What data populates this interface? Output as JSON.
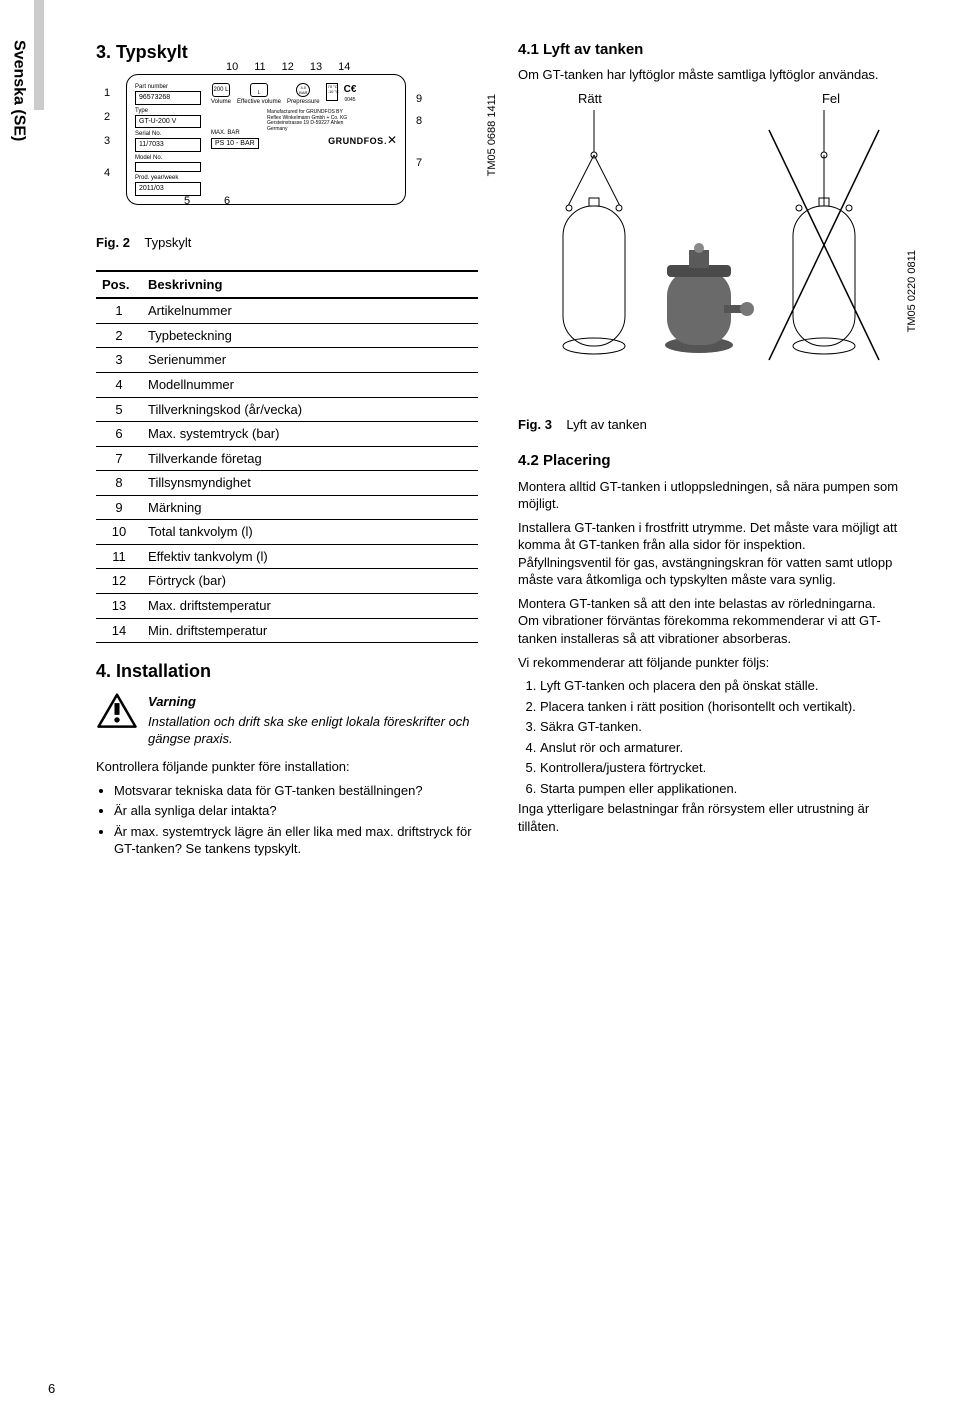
{
  "sidebar": {
    "language": "Svenska (SE)"
  },
  "left": {
    "sec3_title": "3. Typskylt",
    "nameplate": {
      "top_labels": [
        "10",
        "11",
        "12",
        "13",
        "14"
      ],
      "left_labels": [
        "1",
        "2",
        "3",
        "4"
      ],
      "right_labels": [
        "9",
        "8",
        "7"
      ],
      "bottom_labels": [
        "5",
        "6"
      ],
      "fields": {
        "part_number_label": "Part number",
        "part_number": "96573268",
        "type_label": "Type",
        "type": "GT-U-200 V",
        "serial_label": "Serial No.",
        "serial": "11/7033",
        "model_label": "Model No.",
        "prod_label": "Prod. year/week",
        "prod": "2011/03",
        "max_bar_label": "MAX.    BAR",
        "max_bar": "PS 10 - BAR",
        "volume": "200 L",
        "volume_cap": "Volume",
        "eff_cap": "Effective volume",
        "pre_cap": "Prepressure",
        "pre_val": "4.0 BAR",
        "temp": "70 °C\n-10 °C",
        "ce_num": "0045"
      },
      "mfr_lines": "Manufactured for GRUNDFOS BY\nReflex Winkelmann Gmbh + Co. KG\nGersteinstrasse 19 D-59227 Ahlen\nGermany",
      "logo": "GRUNDFOS",
      "tm_code": "TM05 0688 1411"
    },
    "fig2": {
      "label": "Fig. 2",
      "text": "Typskylt"
    },
    "table": {
      "headers": [
        "Pos.",
        "Beskrivning"
      ],
      "rows": [
        [
          "1",
          "Artikelnummer"
        ],
        [
          "2",
          "Typbeteckning"
        ],
        [
          "3",
          "Serienummer"
        ],
        [
          "4",
          "Modellnummer"
        ],
        [
          "5",
          "Tillverkningskod (år/vecka)"
        ],
        [
          "6",
          "Max. systemtryck (bar)"
        ],
        [
          "7",
          "Tillverkande företag"
        ],
        [
          "8",
          "Tillsynsmyndighet"
        ],
        [
          "9",
          "Märkning"
        ],
        [
          "10",
          "Total tankvolym (l)"
        ],
        [
          "11",
          "Effektiv tankvolym (l)"
        ],
        [
          "12",
          "Förtryck (bar)"
        ],
        [
          "13",
          "Max. driftstemperatur"
        ],
        [
          "14",
          "Min. driftstemperatur"
        ]
      ]
    },
    "sec4_title": "4. Installation",
    "warning": {
      "heading": "Varning",
      "body": "Installation och drift ska ske enligt lokala föreskrifter och gängse praxis."
    },
    "check_intro": "Kontrollera följande punkter före installation:",
    "check_bullets": [
      "Motsvarar tekniska data för GT-tanken beställningen?",
      "Är alla synliga delar intakta?",
      "Är max. systemtryck lägre än eller lika med max. driftstryck för GT-tanken? Se tankens typskylt."
    ]
  },
  "right": {
    "sec41_title": "4.1 Lyft av tanken",
    "sec41_intro": "Om GT-tanken har lyftöglor måste samtliga lyftöglor användas.",
    "ratt": "Rätt",
    "fel": "Fel",
    "fig3_tm": "TM05 0220 0811",
    "fig3": {
      "label": "Fig. 3",
      "text": "Lyft av tanken"
    },
    "sec42_title": "4.2 Placering",
    "p1": "Montera alltid GT-tanken i utloppsledningen, så nära pumpen som möjligt.",
    "p2": "Installera GT-tanken i frostfritt utrymme. Det måste vara möjligt att komma åt GT-tanken från alla sidor för inspektion. Påfyllningsventil för gas, avstängningskran för vatten samt utlopp måste vara åtkomliga och typskylten måste vara synlig.",
    "p3": "Montera GT-tanken så att den inte belastas av rörledningarna. Om vibrationer förväntas förekomma rekommenderar vi att GT-tanken installeras så att vibrationer absorberas.",
    "p4": "Vi rekommenderar att följande punkter följs:",
    "steps": [
      "Lyft GT-tanken och placera den på önskat ställe.",
      "Placera tanken i rätt position (horisontellt och vertikalt).",
      "Säkra GT-tanken.",
      "Anslut rör och armaturer.",
      "Kontrollera/justera förtrycket.",
      "Starta pumpen eller applikationen."
    ],
    "p5": "Inga ytterligare belastningar från rörsystem eller utrustning är tillåten."
  },
  "page_number": "6"
}
